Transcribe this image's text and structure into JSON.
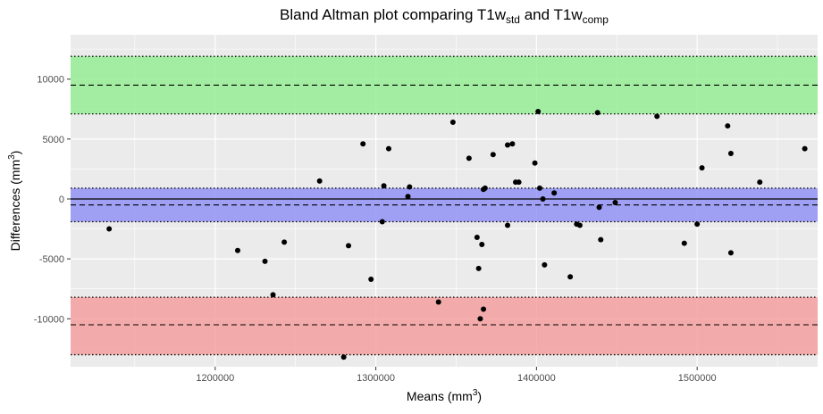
{
  "chart_data": {
    "type": "scatter",
    "title": {
      "prefix": "Bland Altman plot comparing T1w",
      "sub1": "std",
      "middle": " and T1w",
      "sub2": "comp"
    },
    "xlabel": {
      "main": "Means (mm",
      "sup": "3",
      "close": ")"
    },
    "ylabel": {
      "main": "Differences (mm",
      "sup": "3",
      "close": ")"
    },
    "xlim": [
      1110000,
      1575000
    ],
    "ylim": [
      -14000,
      13700
    ],
    "x_ticks": [
      1200000,
      1300000,
      1400000,
      1500000
    ],
    "x_tick_labels": [
      "1200000",
      "1300000",
      "1400000",
      "1500000"
    ],
    "x_minor_ticks": [
      1150000,
      1250000,
      1350000,
      1450000,
      1550000
    ],
    "y_ticks": [
      -10000,
      -5000,
      0,
      5000,
      10000
    ],
    "y_tick_labels": [
      "-10000",
      "-5000",
      "0",
      "5000",
      "10000"
    ],
    "y_minor_ticks": [
      -12500,
      -7500,
      -2500,
      2500,
      7500,
      12500
    ],
    "grid": true,
    "colors": {
      "panel": "#ebebeb",
      "grid": "#ffffff",
      "upper_band": "#90ee90",
      "mean_band": "#8c8cf5",
      "lower_band": "#f49a9a",
      "points": "#000000"
    },
    "bands": [
      {
        "name": "upper limit of agreement",
        "low": 7100,
        "high": 11900,
        "center": 9500,
        "color": "#90ee90"
      },
      {
        "name": "mean difference",
        "low": -1900,
        "high": 900,
        "center": -500,
        "color": "#8c8cf5"
      },
      {
        "name": "lower limit of agreement",
        "low": -13000,
        "high": -8200,
        "center": -10500,
        "color": "#f49a9a"
      }
    ],
    "zero_line": 0,
    "x": [
      1134000,
      1214000,
      1231000,
      1236000,
      1243000,
      1265000,
      1280000,
      1283000,
      1292000,
      1297000,
      1304000,
      1305000,
      1308000,
      1320000,
      1321000,
      1339000,
      1348000,
      1358000,
      1363000,
      1364000,
      1365000,
      1366000,
      1367000,
      1367000,
      1368000,
      1373000,
      1382000,
      1382000,
      1385000,
      1387000,
      1389000,
      1399000,
      1401000,
      1402000,
      1404000,
      1405000,
      1411000,
      1421000,
      1425000,
      1427000,
      1438000,
      1439000,
      1440000,
      1449000,
      1475000,
      1492000,
      1500000,
      1503000,
      1519000,
      1521000,
      1521000,
      1539000,
      1567000
    ],
    "y": [
      -2500,
      -4300,
      -5200,
      -8000,
      -3600,
      1500,
      -13200,
      -3900,
      4600,
      -6700,
      -1900,
      1100,
      4200,
      200,
      1000,
      -8600,
      6400,
      3400,
      -3200,
      -5800,
      -10000,
      -3800,
      -9200,
      800,
      900,
      3700,
      4500,
      -2200,
      4600,
      1400,
      1400,
      3000,
      7300,
      900,
      0,
      -5500,
      500,
      -6500,
      -2100,
      -2200,
      7200,
      -700,
      -3400,
      -300,
      6900,
      -3700,
      -2100,
      2600,
      6100,
      3800,
      -4500,
      1400,
      4200
    ]
  }
}
